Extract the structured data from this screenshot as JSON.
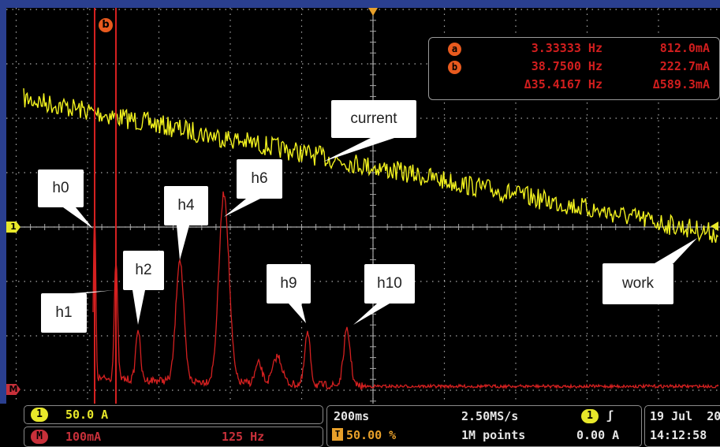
{
  "waveform": {
    "markers": {
      "cursor_b": "b",
      "ch1": "1",
      "math": "M"
    },
    "callouts": [
      {
        "id": "current",
        "text": "current"
      },
      {
        "id": "h0",
        "text": "h0"
      },
      {
        "id": "h1",
        "text": "h1"
      },
      {
        "id": "h2",
        "text": "h2"
      },
      {
        "id": "h4",
        "text": "h4"
      },
      {
        "id": "h6",
        "text": "h6"
      },
      {
        "id": "h9",
        "text": "h9"
      },
      {
        "id": "h10",
        "text": "h10"
      },
      {
        "id": "work",
        "text": "work"
      }
    ]
  },
  "cursor_readout": {
    "a": {
      "badge": "a",
      "freq": "3.33333 Hz",
      "amp": "812.0mA"
    },
    "b": {
      "badge": "b",
      "freq": "38.7500 Hz",
      "amp": "222.7mA"
    },
    "delta": {
      "freq": "Δ35.4167 Hz",
      "amp": "Δ589.3mA"
    }
  },
  "status_bar": {
    "ch1": {
      "badge": "1",
      "scale": "50.0 A"
    },
    "math": {
      "badge": "M",
      "scale": "100mA",
      "freq_scale": "125 Hz"
    },
    "timebase": {
      "time_div": "200ms",
      "sample_rate": "2.50MS/s",
      "trigger_pos": "50.00 %",
      "record_length": "1M points"
    },
    "trigger": {
      "source_badge": "1",
      "slope_icon": "rising-edge",
      "level": "0.00 A"
    },
    "datetime": {
      "date": "19 Jul  20",
      "time": "14:12:58"
    }
  },
  "colors": {
    "ch1_trace": "#f2f21e",
    "math_trace": "#d42020",
    "grid": "#a8a8a8",
    "background": "#000000",
    "readout_text": "#d21e1e"
  }
}
